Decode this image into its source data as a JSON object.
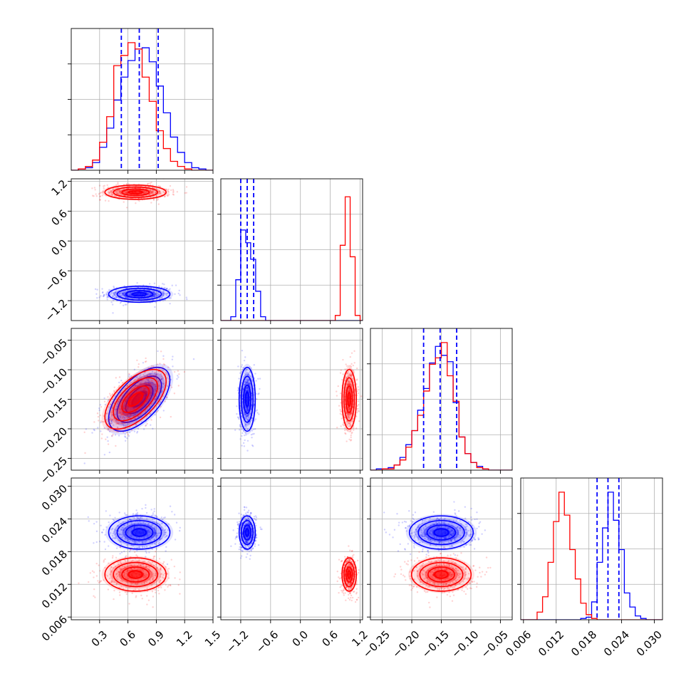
{
  "chart_data": {
    "type": "corner",
    "params": [
      {
        "range": [
          0.0,
          1.5
        ],
        "ticks": [
          0.3,
          0.6,
          0.9,
          1.2,
          1.5
        ],
        "tick_labels": [
          "0.3",
          "0.6",
          "0.9",
          "1.2",
          "1.5"
        ]
      },
      {
        "range": [
          -1.6,
          1.25
        ],
        "ticks": [
          -1.2,
          -0.6,
          0.0,
          0.6,
          1.2
        ],
        "tick_labels": [
          "−1.2",
          "−0.6",
          "0.0",
          "0.6",
          "1.2"
        ]
      },
      {
        "range": [
          -0.27,
          -0.03
        ],
        "ticks": [
          -0.25,
          -0.2,
          -0.15,
          -0.1,
          -0.05
        ],
        "tick_labels": [
          "−0.25",
          "−0.20",
          "−0.15",
          "−0.10",
          "−0.05"
        ]
      },
      {
        "range": [
          0.0055,
          0.0315
        ],
        "ticks": [
          0.006,
          0.012,
          0.018,
          0.024,
          0.03
        ],
        "tick_labels": [
          "0.006",
          "0.012",
          "0.018",
          "0.024",
          "0.030"
        ]
      }
    ],
    "series": [
      {
        "color": "#0000ff",
        "mean": [
          0.72,
          -1.07,
          -0.15,
          0.0215
        ],
        "sd": [
          0.18,
          0.09,
          0.03,
          0.0017
        ],
        "quantiles": [
          [
            0.53,
            0.72,
            0.92
          ],
          [
            -1.2,
            -1.07,
            -0.94
          ],
          [
            -0.18,
            -0.152,
            -0.124
          ],
          [
            0.0195,
            0.0215,
            0.0235
          ]
        ]
      },
      {
        "color": "#ff0000",
        "mean": [
          0.68,
          0.98,
          -0.15,
          0.0138
        ],
        "sd": [
          0.18,
          0.08,
          0.028,
          0.0017
        ]
      }
    ],
    "histograms": [
      {
        "bins": [
          0.0,
          0.075,
          0.15,
          0.225,
          0.3,
          0.375,
          0.45,
          0.525,
          0.6,
          0.675,
          0.75,
          0.825,
          0.9,
          0.975,
          1.05,
          1.125,
          1.2,
          1.275,
          1.35,
          1.425,
          1.5
        ],
        "blue": [
          0.0,
          0.01,
          0.02,
          0.06,
          0.18,
          0.33,
          0.55,
          0.73,
          0.86,
          0.95,
          0.96,
          0.85,
          0.66,
          0.45,
          0.26,
          0.14,
          0.06,
          0.02,
          0.01,
          0.0
        ],
        "red": [
          0.0,
          0.01,
          0.03,
          0.08,
          0.22,
          0.42,
          0.82,
          0.9,
          1.0,
          0.95,
          0.73,
          0.54,
          0.31,
          0.17,
          0.07,
          0.03,
          0.01,
          0.0,
          0.0,
          0.0
        ]
      },
      {
        "bins": [
          -1.6,
          -1.5,
          -1.4,
          -1.3,
          -1.2,
          -1.1,
          -1.0,
          -0.9,
          -0.8,
          -0.7,
          -0.6,
          -0.5,
          -0.4,
          -0.3,
          -0.2,
          -0.1,
          0.0,
          0.1,
          0.2,
          0.3,
          0.4,
          0.5,
          0.6,
          0.7,
          0.8,
          0.9,
          1.0,
          1.1,
          1.2,
          1.25
        ],
        "blue": [
          0.0,
          0.0,
          0.03,
          0.32,
          0.71,
          0.61,
          0.48,
          0.23,
          0.03,
          0.0,
          0.0,
          0.0,
          0.0,
          0.0,
          0.0,
          0.0,
          0.0,
          0.0,
          0.0,
          0.0,
          0.0,
          0.0,
          0.0,
          0.0,
          0.0,
          0.0,
          0.0,
          0.0,
          0.0
        ],
        "red": [
          0.0,
          0.0,
          0.0,
          0.0,
          0.0,
          0.0,
          0.0,
          0.0,
          0.0,
          0.0,
          0.0,
          0.0,
          0.0,
          0.0,
          0.0,
          0.0,
          0.0,
          0.0,
          0.0,
          0.0,
          0.0,
          0.0,
          0.0,
          0.04,
          0.59,
          0.97,
          0.5,
          0.04,
          0.0
        ]
      },
      {
        "bins": [
          -0.27,
          -0.26,
          -0.25,
          -0.24,
          -0.23,
          -0.22,
          -0.21,
          -0.2,
          -0.19,
          -0.18,
          -0.17,
          -0.16,
          -0.15,
          -0.14,
          -0.13,
          -0.12,
          -0.11,
          -0.1,
          -0.09,
          -0.08,
          -0.07,
          -0.06,
          -0.05,
          -0.04,
          -0.03
        ],
        "blue": [
          0.0,
          0.01,
          0.01,
          0.02,
          0.04,
          0.1,
          0.2,
          0.31,
          0.47,
          0.64,
          0.84,
          0.97,
          0.9,
          0.85,
          0.53,
          0.26,
          0.13,
          0.06,
          0.03,
          0.01,
          0.0,
          0.0,
          0.0,
          0.0
        ],
        "red": [
          0.0,
          0.0,
          0.01,
          0.01,
          0.04,
          0.08,
          0.18,
          0.31,
          0.43,
          0.62,
          0.83,
          0.88,
          1.0,
          0.74,
          0.54,
          0.26,
          0.13,
          0.06,
          0.02,
          0.01,
          0.0,
          0.0,
          0.0,
          0.0
        ]
      },
      {
        "bins": [
          0.0055,
          0.0065,
          0.0075,
          0.0085,
          0.0095,
          0.0105,
          0.0115,
          0.0125,
          0.0135,
          0.0145,
          0.0155,
          0.0165,
          0.0175,
          0.0185,
          0.0195,
          0.0205,
          0.0215,
          0.0225,
          0.0235,
          0.0245,
          0.0255,
          0.0265,
          0.0275,
          0.0285,
          0.0295,
          0.0305,
          0.0315
        ],
        "blue": [
          0.0,
          0.0,
          0.0,
          0.0,
          0.0,
          0.0,
          0.0,
          0.0,
          0.0,
          0.0,
          0.0,
          0.01,
          0.02,
          0.14,
          0.45,
          0.72,
          1.0,
          0.78,
          0.55,
          0.21,
          0.1,
          0.03,
          0.01,
          0.0,
          0.0,
          0.0
        ],
        "red": [
          0.0,
          0.0,
          0.0,
          0.06,
          0.18,
          0.45,
          0.77,
          1.0,
          0.82,
          0.55,
          0.32,
          0.13,
          0.04,
          0.01,
          0.0,
          0.0,
          0.0,
          0.0,
          0.0,
          0.0,
          0.0,
          0.0,
          0.0,
          0.0,
          0.0,
          0.0
        ]
      }
    ],
    "correlations": {
      "0,2": 0.6,
      "0,1": 0.0,
      "0,3": 0.0,
      "1,2": 0.0,
      "1,3": 0.0,
      "2,3": 0.0
    },
    "grid": true
  }
}
